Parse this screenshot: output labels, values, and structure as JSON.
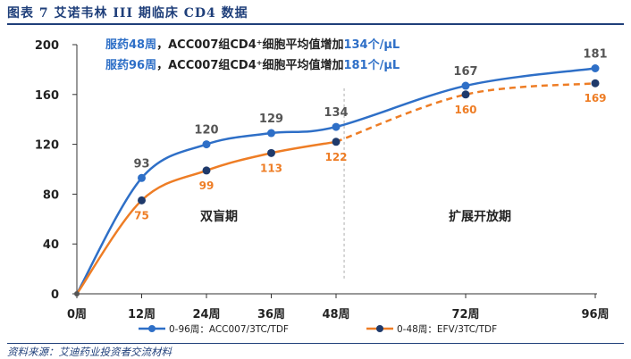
{
  "figure": {
    "title": "图表 7   艾诺韦林 III 期临床 CD4 数据",
    "source": "资料来源：艾迪药业投资者交流材料"
  },
  "chart_data": {
    "type": "line",
    "x_categories": [
      "0周",
      "12周",
      "24周",
      "36周",
      "48周",
      "72周",
      "96周"
    ],
    "x_weeks": [
      0,
      12,
      24,
      36,
      48,
      72,
      96
    ],
    "ylim": [
      0,
      200
    ],
    "yticks": [
      0,
      40,
      80,
      120,
      160,
      200
    ],
    "grid": false,
    "legend_position": "bottom",
    "annotations": {
      "line1_prefix": "服药48周",
      "line1_mid": "，ACC007组CD4",
      "line1_sup": "+",
      "line1_text": "细胞平均值增加",
      "line1_value": "134个/μL",
      "line2_prefix": "服药96周",
      "line2_mid": "，ACC007组CD4",
      "line2_sup": "+",
      "line2_text": "细胞平均值增加",
      "line2_value": "181个/μL",
      "phase1": "双盲期",
      "phase2": "扩展开放期"
    },
    "series": [
      {
        "name": "0-96周：ACC007/3TC/TDF",
        "color": "#2e6fc7",
        "marker_color": "#2e6fc7",
        "label_color": "#555555",
        "points": [
          {
            "x": 0,
            "y": 0,
            "label": ""
          },
          {
            "x": 12,
            "y": 93,
            "label": "93"
          },
          {
            "x": 24,
            "y": 120,
            "label": "120"
          },
          {
            "x": 36,
            "y": 129,
            "label": "129"
          },
          {
            "x": 48,
            "y": 134,
            "label": "134"
          },
          {
            "x": 72,
            "y": 167,
            "label": "167"
          },
          {
            "x": 96,
            "y": 181,
            "label": "181"
          }
        ]
      },
      {
        "name": "0-48周：EFV/3TC/TDF",
        "color": "#ee7d25",
        "marker_color": "#1f3a6b",
        "label_color": "#ee7d25",
        "dashed_after_x": 48,
        "points": [
          {
            "x": 0,
            "y": 0,
            "label": ""
          },
          {
            "x": 12,
            "y": 75,
            "label": "75"
          },
          {
            "x": 24,
            "y": 99,
            "label": "99"
          },
          {
            "x": 36,
            "y": 113,
            "label": "113"
          },
          {
            "x": 48,
            "y": 122,
            "label": "122"
          },
          {
            "x": 72,
            "y": 160,
            "label": "160"
          },
          {
            "x": 96,
            "y": 169,
            "label": "169"
          }
        ]
      }
    ]
  }
}
